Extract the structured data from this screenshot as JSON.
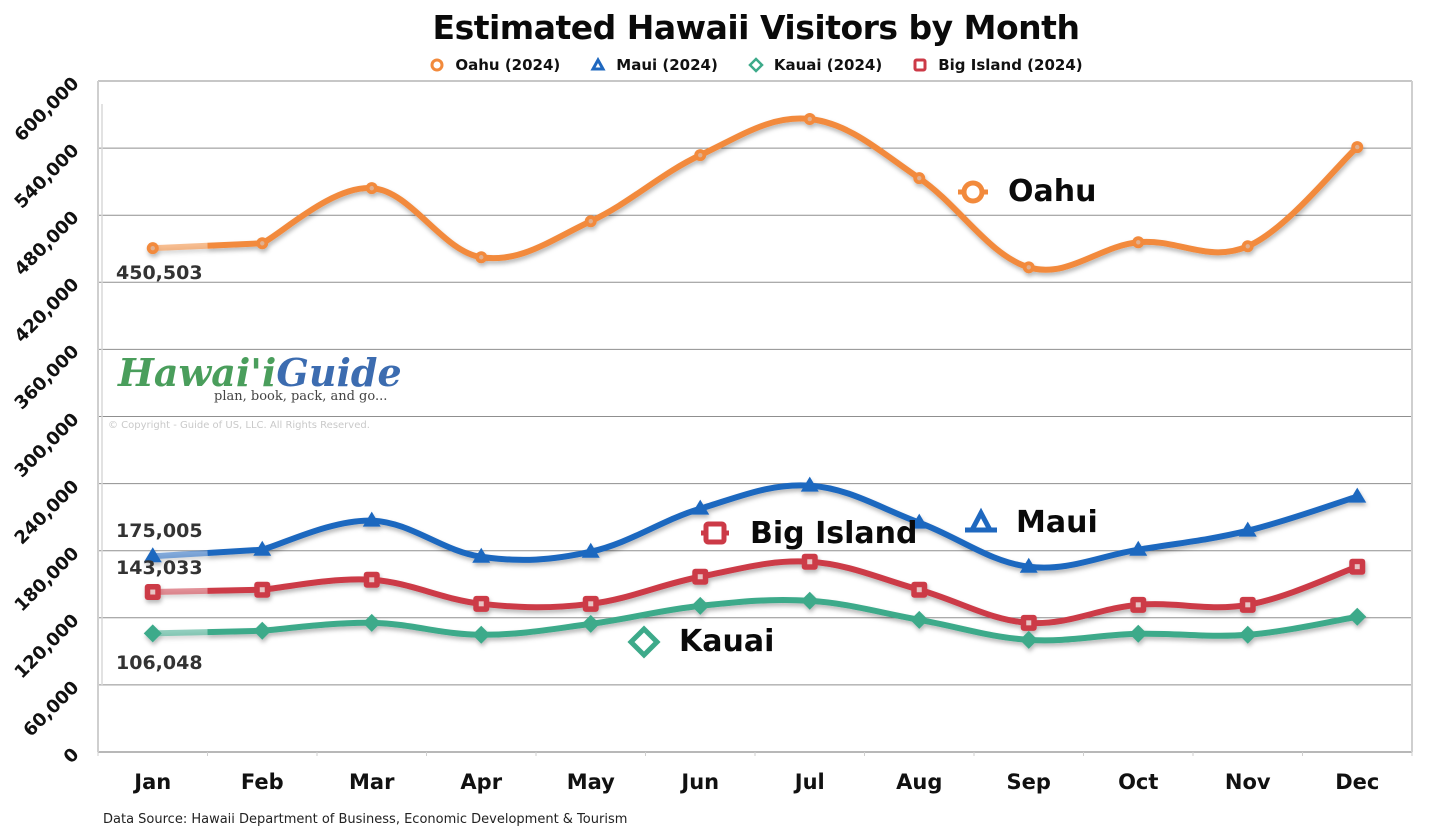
{
  "header": {
    "title": "Estimated Hawaii Visitors by Month"
  },
  "legend": [
    {
      "label": "Oahu (2024)",
      "marker": "circle-icon",
      "color": "#F28A3C"
    },
    {
      "label": "Maui (2024)",
      "marker": "triangle-icon",
      "color": "#1F68BF"
    },
    {
      "label": "Kauai (2024)",
      "marker": "diamond-icon",
      "color": "#3DAA8A"
    },
    {
      "label": "Big Island (2024)",
      "marker": "square-icon",
      "color": "#CC3A47"
    }
  ],
  "callouts": {
    "oahu": "Oahu",
    "maui": "Maui",
    "big_island": "Big Island",
    "kauai": "Kauai"
  },
  "value_labels": {
    "oahu_jan": "450,503",
    "maui_jan": "175,005",
    "big_island_jan": "143,033",
    "kauai_jan": "106,048"
  },
  "logo": {
    "name_part1": "Hawai'i",
    "name_part2": "Guide",
    "tagline": "plan, book, pack, and go...",
    "copyright": "© Copyright - Guide of US, LLC. All Rights Reserved."
  },
  "footer": {
    "source": "Data Source: Hawaii Department of Business, Economic Development & Tourism"
  },
  "chart_data": {
    "type": "line",
    "title": "Estimated Hawaii Visitors by Month",
    "xlabel": "",
    "ylabel": "",
    "categories": [
      "Jan",
      "Feb",
      "Mar",
      "Apr",
      "May",
      "Jun",
      "Jul",
      "Aug",
      "Sep",
      "Oct",
      "Nov",
      "Dec"
    ],
    "yticks": [
      "0",
      "60,000",
      "120,000",
      "180,000",
      "240,000",
      "300,000",
      "360,000",
      "420,000",
      "480,000",
      "540,000",
      "600,000"
    ],
    "ylim": [
      0,
      600000
    ],
    "grid": true,
    "legend_position": "top",
    "series": [
      {
        "name": "Oahu (2024)",
        "color": "#F28A3C",
        "marker": "circle",
        "values": [
          450503,
          454900,
          504200,
          442400,
          474600,
          533700,
          566000,
          513100,
          433400,
          455800,
          452200,
          540900
        ]
      },
      {
        "name": "Maui (2024)",
        "color": "#1F68BF",
        "marker": "triangle",
        "values": [
          175005,
          180900,
          206900,
          174600,
          179100,
          217600,
          238200,
          205100,
          165700,
          180900,
          197900,
          228400
        ]
      },
      {
        "name": "Kauai (2024)",
        "color": "#3DAA8A",
        "marker": "diamond",
        "values": [
          106048,
          108400,
          115500,
          104800,
          114600,
          130700,
          135200,
          118200,
          100300,
          105700,
          104800,
          120900
        ]
      },
      {
        "name": "Big Island (2024)",
        "color": "#CC3A47",
        "marker": "square",
        "values": [
          143033,
          145100,
          154000,
          132500,
          132500,
          156700,
          170100,
          145100,
          115500,
          131600,
          131600,
          165700
        ]
      }
    ],
    "annotations": [
      "450,503",
      "175,005",
      "143,033",
      "106,048",
      "Oahu",
      "Maui",
      "Big Island",
      "Kauai"
    ]
  }
}
